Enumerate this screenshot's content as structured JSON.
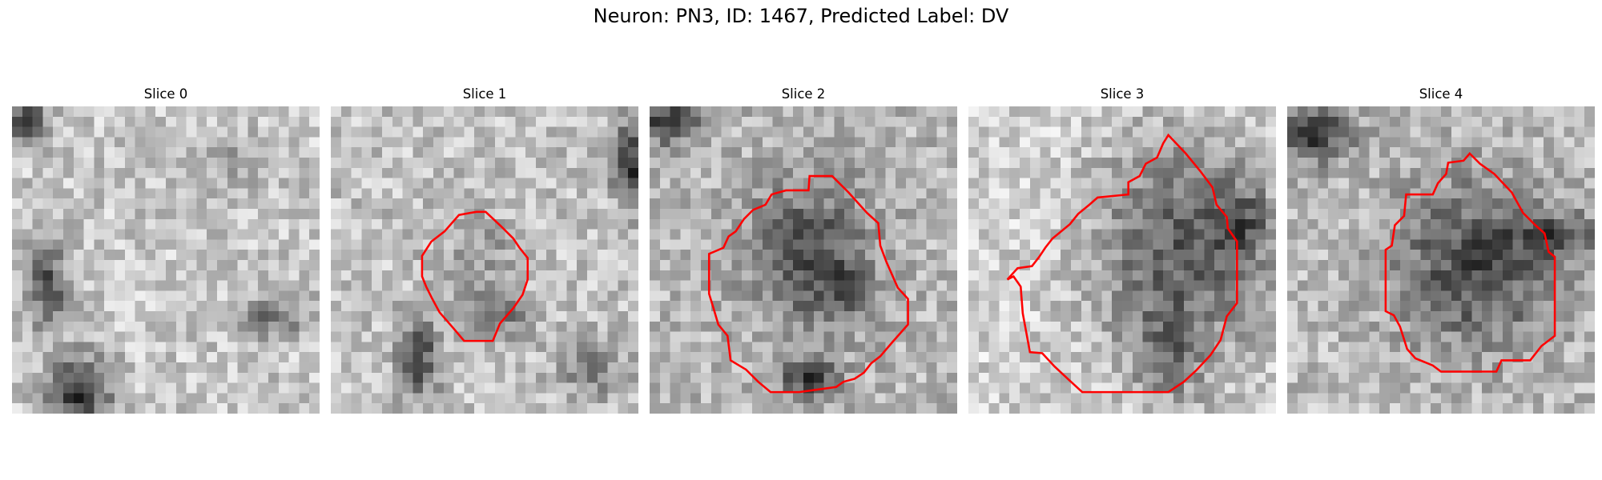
{
  "figure": {
    "title": "Neuron: PN3, ID: 1467, Predicted Label: DV",
    "contour_color": "#ff0000"
  },
  "panels": [
    {
      "title": "Slice 0",
      "has_contour": false
    },
    {
      "title": "Slice 1",
      "has_contour": true
    },
    {
      "title": "Slice 2",
      "has_contour": true
    },
    {
      "title": "Slice 3",
      "has_contour": true
    },
    {
      "title": "Slice 4",
      "has_contour": true
    }
  ]
}
